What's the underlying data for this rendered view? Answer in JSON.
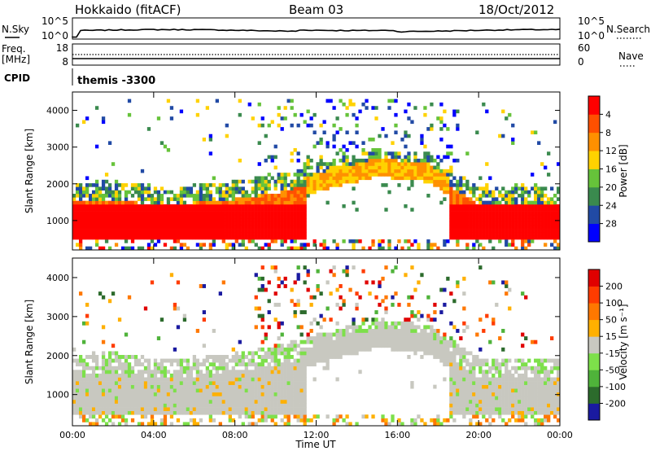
{
  "header": {
    "station": "Hokkaido (fitACF)",
    "beam": "Beam 03",
    "date": "18/Oct/2012"
  },
  "top_panels": {
    "nsky_label": "N.Sky",
    "nsky_ticks": [
      "10^5",
      "10^0"
    ],
    "nsearch_label": "N.Search",
    "nsearch_ticks": [
      "10^5",
      "10^0"
    ],
    "freq_label": "Freq.",
    "freq_unit": "[MHz]",
    "freq_ticks": [
      "18",
      "8"
    ],
    "nave_label": "Nave",
    "nave_ticks": [
      "60",
      "0"
    ],
    "cpid_label": "CPID",
    "cpid_value": "themis -3300"
  },
  "chart_data": [
    {
      "type": "heatmap",
      "name_key": "power",
      "ylabel": "Slant Range [km]",
      "ylim": [
        200,
        4500
      ],
      "yticks": [
        "1000",
        "2000",
        "3000",
        "4000"
      ],
      "xlim": [
        0,
        24
      ],
      "colorbar_label": "Power [dB]",
      "colorbar_ticks": [
        "4",
        "8",
        "12",
        "16",
        "20",
        "24",
        "28"
      ],
      "colors": [
        "#0000ff",
        "#214aa5",
        "#3a8a4e",
        "#66c33a",
        "#ffd200",
        "#ff9000",
        "#ff5000",
        "#ff0000"
      ]
    },
    {
      "type": "heatmap",
      "name_key": "velocity",
      "ylabel": "Slant Range [km]",
      "ylim": [
        200,
        4500
      ],
      "yticks": [
        "1000",
        "2000",
        "3000",
        "4000"
      ],
      "xlim": [
        0,
        24
      ],
      "colorbar_label": "Velocity [m s⁻¹]",
      "colorbar_ticks": [
        "200",
        "100",
        "50",
        "15",
        "-15",
        "-50",
        "-100",
        "-200"
      ],
      "colors": [
        "#1a1aa0",
        "#2c6b2c",
        "#4fb33a",
        "#7de04a",
        "#c8c8c0",
        "#ffb000",
        "#ff7800",
        "#ff3c00",
        "#e00000"
      ]
    }
  ],
  "xaxis": {
    "ticks": [
      "00:00",
      "04:00",
      "08:00",
      "12:00",
      "16:00",
      "20:00",
      "00:00"
    ],
    "label": "Time UT"
  },
  "colors": {
    "ground_scatter": "#c8c8c0",
    "axis": "#000000"
  }
}
